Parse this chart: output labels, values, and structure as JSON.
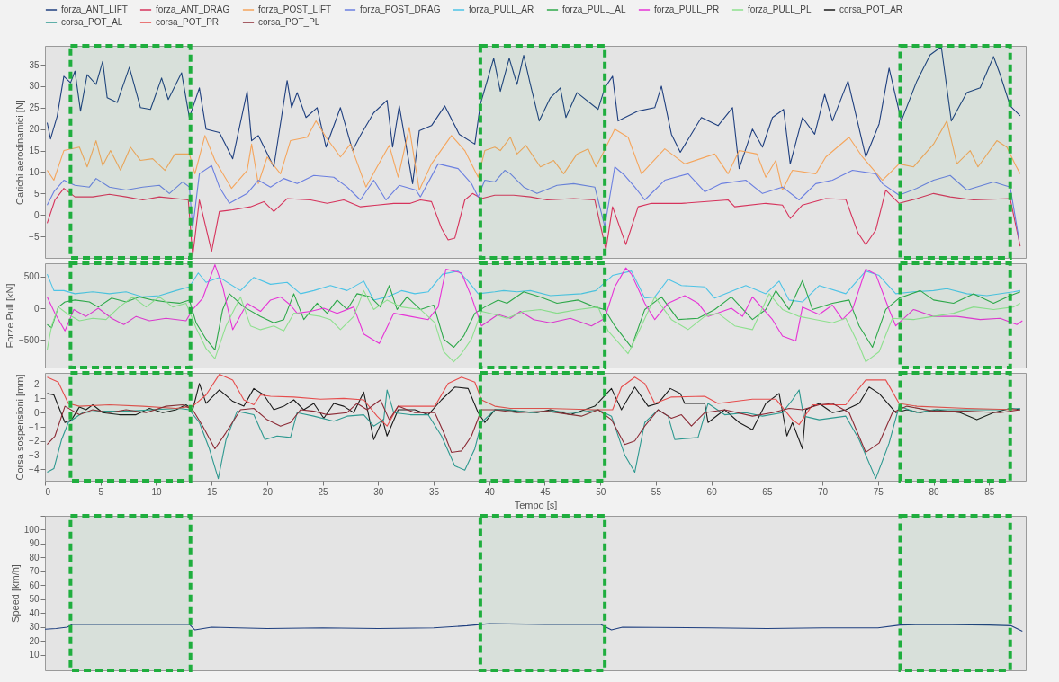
{
  "chart_data": [
    {
      "type": "line",
      "ylabel": "Carichi aerodinamici [N]",
      "xlim": [
        0,
        88.3
      ],
      "xticks": [
        0,
        5,
        10,
        15,
        20,
        25,
        30,
        35,
        40,
        45,
        50,
        55,
        60,
        65,
        70,
        75,
        80,
        85
      ],
      "ylim": [
        -10,
        39.4
      ],
      "yticks": [
        -5,
        0,
        5,
        10,
        15,
        20,
        25,
        30,
        35
      ],
      "tick_labels": "y",
      "legend": "top",
      "bands": [
        {
          "axis": "x",
          "from": 2.3,
          "to": 13.1,
          "color": "#1fae3e"
        },
        {
          "axis": "x",
          "from": 39.2,
          "to": 50.4,
          "color": "#1fae3e"
        },
        {
          "axis": "x",
          "from": 77.0,
          "to": 86.9,
          "color": "#1fae3e"
        }
      ],
      "series": [
        {
          "name": "forza_ANT_LIFT",
          "color": "#1f3f7f",
          "x": [
            0.2,
            0.5,
            1.1,
            1.7,
            2.3,
            2.7,
            3.2,
            3.8,
            4.6,
            5.2,
            5.6,
            6.5,
            7.6,
            8.6,
            9.5,
            10.5,
            11.1,
            12.3,
            13.0,
            13.5,
            13.9,
            14.5,
            15.7,
            16.9,
            18.2,
            18.6,
            19.2,
            20.6,
            21.8,
            22.2,
            22.7,
            23.5,
            24.5,
            25.3,
            26.6,
            27.7,
            28.4,
            29.6,
            30.8,
            31.3,
            31.9,
            33.1,
            33.7,
            34.8,
            36.0,
            37.3,
            38.7,
            39.2,
            40.4,
            41.0,
            41.8,
            42.5,
            43.1,
            43.7,
            44.5,
            45.5,
            46.4,
            46.9,
            47.9,
            49.8,
            50.4,
            51.1,
            51.6,
            53.4,
            54.9,
            55.5,
            56.4,
            57.2,
            59.1,
            60.6,
            61.9,
            62.5,
            63.7,
            64.6,
            65.5,
            66.5,
            67.1,
            68.2,
            69.3,
            70.2,
            70.9,
            72.3,
            73.9,
            75.1,
            76.0,
            77.1,
            78.5,
            79.7,
            80.7,
            81.6,
            83.0,
            84.2,
            85.4,
            86.0,
            86.9,
            87.8
          ],
          "values": [
            21.5,
            17.7,
            23,
            32.3,
            30.8,
            33.5,
            24.2,
            32.7,
            30.4,
            35.8,
            27.3,
            26.2,
            34.4,
            25,
            24.6,
            31.9,
            26.9,
            33.1,
            22.7,
            26.5,
            29.6,
            20,
            19.2,
            13.1,
            28.8,
            17.3,
            18.5,
            11.2,
            31.3,
            25,
            28.5,
            22.7,
            25,
            15.8,
            25,
            15,
            18.5,
            23.8,
            26.7,
            15.8,
            25.4,
            7.3,
            19.6,
            20.8,
            25.4,
            18.8,
            16.5,
            25.8,
            36.5,
            28.8,
            36.5,
            30.4,
            37.2,
            30.4,
            21.9,
            27.3,
            29.6,
            22.7,
            28.5,
            24.6,
            29.6,
            32.3,
            21.9,
            24.2,
            25,
            30,
            18.8,
            14.6,
            22.7,
            20.8,
            25,
            10.8,
            20,
            15.8,
            22.7,
            24.6,
            11.9,
            22.7,
            18.8,
            28.1,
            21.9,
            31.2,
            13.5,
            21.2,
            34.2,
            21.9,
            31.2,
            37.3,
            39.2,
            21.9,
            28.5,
            29.6,
            36.9,
            32.7,
            25.4,
            23.1
          ]
        },
        {
          "name": "forza_ANT_DRAG",
          "color": "#d6335c",
          "x": [
            0.2,
            0.9,
            1.7,
            2.7,
            4.3,
            5.8,
            7.3,
            8.8,
            10.3,
            11.8,
            12.9,
            13.3,
            13.9,
            15.0,
            15.7,
            16.9,
            18.5,
            19.7,
            20.6,
            21.8,
            23.9,
            25.4,
            26.9,
            28.4,
            29.9,
            31.4,
            32.9,
            33.8,
            34.8,
            35.7,
            36.3,
            36.9,
            37.8,
            38.5,
            39.3,
            40.5,
            42.2,
            43.7,
            45.2,
            47.6,
            49.5,
            50.5,
            51.1,
            52.3,
            53.4,
            54.6,
            57.3,
            61.5,
            62.1,
            64.9,
            66.4,
            67.1,
            68.2,
            70.3,
            72.1,
            73.2,
            73.9,
            74.8,
            75.7,
            76.9,
            78.5,
            80.0,
            81.5,
            83.6,
            86.9,
            87.8
          ],
          "values": [
            -1.9,
            3.5,
            6.2,
            4.2,
            4.2,
            4.8,
            4.2,
            3.5,
            4.2,
            3.8,
            3.5,
            -9.6,
            3.5,
            -8.5,
            0.8,
            1.2,
            1.9,
            3.1,
            0.8,
            3.8,
            3.5,
            2.7,
            3.5,
            1.9,
            2.3,
            2.7,
            2.7,
            3.5,
            3.1,
            -3.1,
            -5.8,
            -5.4,
            3.5,
            5,
            3.8,
            4.6,
            4.6,
            4.2,
            3.5,
            3.8,
            3.5,
            -8.1,
            1.9,
            -6.9,
            1.9,
            2.7,
            2.7,
            3.5,
            1.9,
            2.7,
            2.3,
            -0.8,
            2.3,
            3.8,
            3.6,
            -4.2,
            -6.9,
            -3.5,
            5.8,
            2.7,
            3.8,
            5,
            4.2,
            3.5,
            3.8,
            -7.3
          ]
        },
        {
          "name": "forza_POST_LIFT",
          "color": "#f5a55c",
          "x": [
            0.2,
            0.8,
            1.7,
            3.1,
            3.8,
            4.6,
            5.2,
            5.9,
            6.8,
            7.7,
            8.6,
            9.7,
            10.8,
            11.7,
            13.0,
            13.5,
            14.4,
            15.3,
            16.8,
            18.2,
            18.6,
            19.2,
            20.0,
            21.2,
            22.1,
            23.6,
            24.4,
            25.3,
            26.6,
            27.5,
            28.9,
            29.9,
            31.0,
            31.8,
            32.8,
            33.7,
            34.8,
            36.6,
            37.8,
            39.0,
            39.6,
            40.5,
            41.0,
            41.9,
            42.5,
            43.3,
            44.6,
            45.8,
            46.7,
            47.9,
            48.9,
            49.6,
            50.2,
            51.3,
            52.5,
            53.7,
            55.8,
            57.6,
            60.3,
            61.5,
            62.5,
            64.1,
            64.9,
            65.8,
            66.4,
            67.3,
            69.4,
            70.3,
            72.4,
            73.6,
            75.4,
            76.9,
            78.2,
            80.0,
            81.2,
            82.1,
            83.3,
            84.0,
            85.7,
            86.6,
            87.4,
            87.8
          ],
          "values": [
            10.4,
            8.1,
            15,
            15.8,
            11.2,
            17.3,
            11.5,
            15,
            10.4,
            15.8,
            12.7,
            13.1,
            10.4,
            14.2,
            14.2,
            9.6,
            18.5,
            12.7,
            6.2,
            10.4,
            16.5,
            7.3,
            13.5,
            9.6,
            17.3,
            18.1,
            21.9,
            18.1,
            13.5,
            16.5,
            6.5,
            11.2,
            16.2,
            8.8,
            20.4,
            5.8,
            11.9,
            18.5,
            15,
            8.8,
            15,
            15.8,
            15,
            18.1,
            14.2,
            16.2,
            11.2,
            12.7,
            9.6,
            14.2,
            15.4,
            11.2,
            14.2,
            20,
            18.1,
            9.6,
            15.4,
            11.9,
            14.2,
            9.6,
            15,
            14.2,
            8.8,
            12.7,
            5.8,
            10.4,
            9.6,
            13.5,
            18.1,
            13.5,
            8.1,
            11.9,
            11.2,
            16.5,
            21.9,
            11.9,
            15,
            11.2,
            17.3,
            15.8,
            11.5,
            9.6
          ]
        },
        {
          "name": "forza_POST_DRAG",
          "color": "#6b7fe0",
          "x": [
            0.2,
            0.8,
            1.7,
            2.7,
            4.0,
            4.6,
            5.8,
            7.3,
            8.8,
            10.3,
            11.2,
            12.4,
            13.0,
            13.3,
            13.9,
            15.0,
            15.7,
            16.6,
            18.2,
            19.2,
            20.3,
            21.5,
            22.7,
            24.2,
            26.0,
            27.2,
            28.4,
            29.6,
            30.7,
            31.9,
            33.4,
            33.8,
            35.4,
            37.2,
            38.4,
            39.0,
            39.6,
            40.5,
            41.4,
            41.9,
            43.1,
            44.3,
            46.1,
            47.6,
            49.5,
            50.4,
            51.3,
            52.2,
            53.1,
            54.0,
            55.8,
            57.9,
            59.4,
            60.9,
            63.1,
            64.6,
            66.4,
            67.9,
            69.4,
            70.9,
            72.7,
            74.8,
            75.4,
            76.9,
            78.5,
            80.0,
            81.5,
            83.0,
            85.4,
            86.9,
            87.7
          ],
          "values": [
            2.3,
            5.4,
            8.1,
            6.9,
            6.5,
            8.5,
            6.5,
            5.8,
            6.5,
            6.9,
            5,
            7.7,
            6.5,
            -3.1,
            9.6,
            11.5,
            6.5,
            2.7,
            5,
            8.1,
            6.5,
            8.5,
            7.3,
            9.2,
            8.8,
            6.5,
            3.5,
            8.1,
            3.5,
            6.9,
            5.8,
            4.2,
            11.9,
            10.8,
            7.3,
            4.2,
            8.1,
            7.7,
            10.4,
            9.6,
            6.5,
            5,
            6.9,
            7.3,
            6.5,
            -2.7,
            11.2,
            9.2,
            6.5,
            3.5,
            8.1,
            9.6,
            5.4,
            7.3,
            8.1,
            5,
            6.5,
            3.5,
            7.3,
            8.1,
            10.4,
            9.6,
            7.3,
            4.6,
            6.2,
            8.1,
            9.2,
            5.8,
            7.7,
            6.5,
            -5.8
          ]
        }
      ]
    },
    {
      "type": "line",
      "ylabel": "Forze Pull [kN]",
      "xlim": [
        0,
        88.3
      ],
      "xticks": [
        0,
        5,
        10,
        15,
        20,
        25,
        30,
        35,
        40,
        45,
        50,
        55,
        60,
        65,
        70,
        75,
        80,
        85
      ],
      "ylim": [
        -940,
        713
      ],
      "yticks": [
        -500,
        0,
        500
      ],
      "tick_labels": "y",
      "legend": "top",
      "bands": [
        {
          "axis": "x",
          "from": 2.3,
          "to": 13.1,
          "color": "#1fae3e"
        },
        {
          "axis": "x",
          "from": 39.2,
          "to": 50.4,
          "color": "#1fae3e"
        },
        {
          "axis": "x",
          "from": 77.0,
          "to": 86.9,
          "color": "#1fae3e"
        }
      ],
      "series": [
        {
          "name": "forza_PULL_AR",
          "color": "#4dc3e6",
          "x": [
            0.2,
            0.8,
            1.7,
            2.7,
            4.3,
            5.8,
            7.3,
            8.8,
            10.3,
            11.8,
            13.0,
            13.8,
            14.5,
            15.7,
            17.6,
            18.8,
            20.3,
            21.8,
            23.0,
            24.2,
            25.7,
            27.2,
            28.7,
            29.6,
            30.8,
            32.1,
            33.3,
            34.5,
            35.8,
            37.2,
            38.1,
            39.0,
            40.5,
            41.3,
            42.5,
            43.7,
            45.5,
            48.3,
            49.6,
            51.1,
            52.8,
            54.0,
            54.9,
            56.1,
            57.3,
            59.4,
            60.3,
            63.1,
            64.9,
            66.1,
            67.0,
            68.2,
            69.7,
            72.1,
            73.9,
            75.1,
            76.6,
            78.2,
            80.0,
            81.2,
            83.0,
            84.8,
            87.2,
            87.8
          ],
          "values": [
            540,
            280,
            280,
            230,
            260,
            230,
            260,
            180,
            200,
            280,
            340,
            560,
            410,
            490,
            280,
            490,
            380,
            410,
            230,
            280,
            360,
            280,
            430,
            130,
            180,
            280,
            230,
            260,
            540,
            590,
            430,
            230,
            260,
            280,
            260,
            280,
            200,
            230,
            280,
            520,
            590,
            160,
            180,
            460,
            360,
            340,
            160,
            360,
            230,
            430,
            130,
            100,
            360,
            230,
            590,
            520,
            230,
            260,
            280,
            310,
            230,
            200,
            260,
            280
          ]
        },
        {
          "name": "forza_PULL_AL",
          "color": "#2ea84a",
          "x": [
            0.2,
            0.6,
            1.2,
            1.8,
            2.7,
            4.0,
            4.8,
            6.0,
            7.3,
            8.5,
            9.7,
            10.9,
            12.1,
            13.0,
            13.6,
            14.5,
            15.3,
            16.0,
            16.6,
            17.9,
            19.4,
            20.6,
            21.5,
            22.4,
            23.3,
            24.5,
            25.4,
            26.3,
            27.2,
            28.1,
            29.3,
            30.2,
            31.0,
            31.7,
            32.6,
            33.8,
            35.0,
            35.9,
            36.8,
            37.7,
            38.7,
            39.6,
            40.8,
            41.6,
            43.1,
            44.6,
            46.1,
            48.0,
            49.5,
            50.4,
            51.3,
            52.8,
            54.0,
            55.5,
            57.0,
            58.8,
            60.3,
            61.8,
            63.7,
            64.9,
            65.8,
            67.0,
            68.2,
            69.1,
            70.9,
            72.4,
            73.3,
            74.5,
            75.7,
            76.9,
            78.8,
            80.0,
            81.8,
            83.6,
            85.4,
            86.9,
            87.8
          ],
          "values": [
            -260,
            -310,
            20,
            100,
            130,
            100,
            20,
            160,
            100,
            180,
            130,
            100,
            80,
            130,
            -230,
            -490,
            -660,
            -20,
            230,
            20,
            -130,
            -230,
            -180,
            230,
            -180,
            80,
            -80,
            130,
            -20,
            230,
            180,
            20,
            360,
            -20,
            180,
            -20,
            50,
            -490,
            -620,
            -440,
            -80,
            20,
            130,
            80,
            260,
            180,
            80,
            130,
            20,
            -20,
            -280,
            -620,
            -20,
            180,
            -180,
            -160,
            -20,
            180,
            -180,
            -20,
            280,
            -20,
            440,
            -20,
            80,
            130,
            -280,
            -620,
            -20,
            160,
            280,
            130,
            80,
            230,
            80,
            200,
            260
          ]
        },
        {
          "name": "forza_PULL_PR",
          "color": "#e633d6",
          "x": [
            0.2,
            0.9,
            1.8,
            2.6,
            3.7,
            4.8,
            6.0,
            7.1,
            8.2,
            9.4,
            10.9,
            12.7,
            13.3,
            14.2,
            15.3,
            16.0,
            16.9,
            18.2,
            19.4,
            20.3,
            21.2,
            22.1,
            22.7,
            23.9,
            25.1,
            26.3,
            27.8,
            28.7,
            30.1,
            31.4,
            32.9,
            34.5,
            35.4,
            36.1,
            37.5,
            38.4,
            39.3,
            40.8,
            41.9,
            42.8,
            44.0,
            45.5,
            47.3,
            49.2,
            50.4,
            51.3,
            52.3,
            52.8,
            54.0,
            54.9,
            56.1,
            57.6,
            58.8,
            59.7,
            61.8,
            62.8,
            63.7,
            65.5,
            66.4,
            67.6,
            68.2,
            69.7,
            70.9,
            71.8,
            72.7,
            73.9,
            74.8,
            76.0,
            76.6,
            78.2,
            80.0,
            82.1,
            84.2,
            86.0,
            87.5,
            88.0
          ],
          "values": [
            180,
            -80,
            -360,
            -20,
            -130,
            0,
            -160,
            -260,
            -130,
            -200,
            -160,
            -200,
            -20,
            160,
            690,
            340,
            -340,
            80,
            -50,
            130,
            180,
            50,
            -80,
            -50,
            0,
            -80,
            20,
            -410,
            -560,
            -80,
            -130,
            -180,
            20,
            620,
            560,
            180,
            -280,
            -100,
            -160,
            -50,
            -180,
            -230,
            -160,
            -280,
            -160,
            340,
            640,
            540,
            80,
            -180,
            80,
            200,
            80,
            -130,
            0,
            -130,
            180,
            -180,
            -440,
            -520,
            20,
            -100,
            50,
            -180,
            -20,
            620,
            540,
            -20,
            -280,
            -20,
            -130,
            -130,
            -180,
            -160,
            -260,
            -200
          ]
        },
        {
          "name": "forza_PULL_PL",
          "color": "#8ee08e",
          "x": [
            0.2,
            0.6,
            1.2,
            2.1,
            3.1,
            4.3,
            5.5,
            6.7,
            7.9,
            9.1,
            10.3,
            11.5,
            12.7,
            13.6,
            14.5,
            15.3,
            16.3,
            17.6,
            18.5,
            19.4,
            20.6,
            21.5,
            22.4,
            23.6,
            24.8,
            25.7,
            26.6,
            27.8,
            28.7,
            29.6,
            30.8,
            32.1,
            33.8,
            35.1,
            35.9,
            36.8,
            37.5,
            38.4,
            39.3,
            40.5,
            41.6,
            43.1,
            44.6,
            46.1,
            48.0,
            49.8,
            50.7,
            51.6,
            52.5,
            53.7,
            54.9,
            56.4,
            57.9,
            59.4,
            60.6,
            62.1,
            63.7,
            65.2,
            66.4,
            67.9,
            69.4,
            70.9,
            72.1,
            73.3,
            73.9,
            75.1,
            76.3,
            78.2,
            80.0,
            81.8,
            83.6,
            85.4,
            87.2,
            87.8
          ],
          "values": [
            -660,
            -280,
            20,
            -100,
            -200,
            -160,
            -180,
            20,
            180,
            20,
            180,
            20,
            80,
            -310,
            -640,
            -800,
            -280,
            180,
            -280,
            -340,
            -280,
            -360,
            -80,
            -100,
            -130,
            -180,
            -340,
            -130,
            280,
            -20,
            130,
            20,
            -20,
            -230,
            -690,
            -850,
            -720,
            -490,
            -50,
            -100,
            -160,
            -50,
            -20,
            -80,
            -20,
            20,
            -360,
            -540,
            -720,
            -280,
            180,
            -180,
            -340,
            -130,
            -80,
            -280,
            -340,
            230,
            -20,
            -130,
            -180,
            -230,
            -160,
            -590,
            -850,
            -690,
            -160,
            -180,
            -130,
            -80,
            20,
            -20,
            20,
            80
          ]
        }
      ]
    },
    {
      "type": "line",
      "xlabel": "Tempo [s]",
      "ylabel": "Corsa sospensioni [mm]",
      "xlim": [
        0,
        88.3
      ],
      "xticks": [
        0,
        5,
        10,
        15,
        20,
        25,
        30,
        35,
        40,
        45,
        50,
        55,
        60,
        65,
        70,
        75,
        80,
        85
      ],
      "ylim": [
        -4.8,
        2.8
      ],
      "yticks": [
        -4,
        -3,
        -2,
        -1,
        0,
        1,
        2
      ],
      "legend": "top",
      "bands": [
        {
          "axis": "x",
          "from": 2.3,
          "to": 13.1,
          "color": "#1fae3e"
        },
        {
          "axis": "x",
          "from": 39.2,
          "to": 50.4,
          "color": "#1fae3e"
        },
        {
          "axis": "x",
          "from": 77.0,
          "to": 86.9,
          "color": "#1fae3e"
        }
      ],
      "series": [
        {
          "name": "corsa_POT_AR",
          "color": "#1a1a1a",
          "x": [
            0.2,
            0.8,
            1.8,
            2.4,
            3.1,
            3.7,
            4.3,
            5.2,
            6.7,
            8.2,
            9.4,
            10.6,
            11.8,
            12.7,
            13.3,
            13.9,
            14.5,
            15.7,
            16.9,
            17.9,
            18.8,
            19.7,
            20.6,
            21.5,
            22.4,
            23.3,
            24.2,
            25.1,
            26.0,
            26.9,
            27.8,
            28.7,
            29.6,
            30.4,
            30.8,
            31.8,
            33.3,
            34.5,
            35.7,
            36.9,
            38.1,
            39.0,
            39.6,
            40.5,
            41.3,
            42.5,
            44.3,
            45.5,
            47.3,
            49.5,
            51.0,
            51.9,
            53.1,
            54.3,
            55.2,
            56.3,
            57.2,
            57.6,
            59.4,
            59.7,
            61.2,
            62.5,
            63.7,
            64.9,
            66.1,
            66.8,
            67.3,
            68.2,
            68.5,
            69.7,
            70.9,
            72.1,
            73.3,
            74.2,
            75.1,
            76.6,
            77.6,
            78.8,
            80.3,
            82.4,
            83.9,
            85.4,
            86.9,
            87.8
          ],
          "values": [
            1.35,
            1.25,
            -0.7,
            -0.5,
            0.4,
            0.2,
            0.55,
            0,
            -0.15,
            -0.15,
            0.3,
            0,
            0.2,
            0.55,
            0.2,
            2.05,
            0.65,
            1.6,
            0.8,
            0.45,
            1.7,
            1.25,
            0.2,
            0.45,
            0.9,
            0.2,
            0.65,
            -0.4,
            0.65,
            0.45,
            0,
            1.45,
            -1.9,
            -0.5,
            -1.65,
            0.2,
            0.2,
            -0.15,
            0.9,
            1.8,
            1.7,
            0,
            -0.7,
            0.2,
            0.2,
            0.1,
            0,
            0.2,
            -0.15,
            0.45,
            1.7,
            0.2,
            1.8,
            0.45,
            0.65,
            1.7,
            1.35,
            0.65,
            0.65,
            -0.7,
            0.2,
            -0.7,
            -1.2,
            0.65,
            1.35,
            -1.65,
            -0.7,
            -2.55,
            0.2,
            0.65,
            0,
            0.2,
            0.65,
            1.8,
            1.35,
            0,
            0.2,
            0,
            0.2,
            0,
            -0.5,
            0,
            0.3,
            0.2
          ]
        },
        {
          "name": "corsa_POT_AL",
          "color": "#2e9990",
          "x": [
            0.2,
            0.8,
            1.5,
            2.1,
            3.4,
            4.9,
            7.3,
            9.7,
            12.1,
            13.0,
            13.9,
            14.8,
            15.6,
            16.3,
            17.3,
            18.8,
            19.8,
            20.9,
            22.1,
            22.7,
            24.2,
            26.0,
            27.2,
            28.7,
            29.6,
            30.5,
            30.8,
            31.4,
            32.9,
            34.5,
            35.7,
            36.9,
            37.8,
            38.7,
            39.3,
            40.5,
            41.9,
            43.7,
            45.5,
            47.9,
            49.8,
            51.0,
            52.2,
            53.1,
            54.0,
            55.2,
            56.1,
            56.7,
            58.8,
            59.7,
            61.2,
            63.1,
            64.6,
            66.4,
            67.3,
            67.9,
            68.3,
            69.7,
            72.1,
            73.3,
            74.8,
            76.0,
            76.9,
            78.5,
            80.0,
            83.0,
            86.0,
            87.8
          ],
          "values": [
            -4.2,
            -3.95,
            -1.9,
            -0.7,
            0,
            0.1,
            0.1,
            0.2,
            0.3,
            0.2,
            -0.7,
            -2.55,
            -4.65,
            -1.9,
            0.1,
            -0.15,
            -1.9,
            -1.65,
            -1.75,
            0,
            -0.25,
            -0.6,
            -0.25,
            -0.15,
            -0.95,
            -0.5,
            1.6,
            0,
            -0.15,
            -0.15,
            -1.65,
            -3.75,
            -4.05,
            -2.55,
            -0.7,
            0.2,
            0.2,
            0,
            0.1,
            0,
            0.2,
            -0.25,
            -3,
            -4.2,
            -0.7,
            0.2,
            -0.25,
            -1.9,
            -1.75,
            0.65,
            -0.15,
            0,
            -0.25,
            0,
            0.9,
            1.6,
            -0.25,
            -0.5,
            -0.25,
            -1.9,
            -4.65,
            -2.15,
            0.45,
            0,
            0.2,
            0.2,
            0.2,
            0.3
          ]
        },
        {
          "name": "corsa_POT_PR",
          "color": "#e64d4d",
          "x": [
            0.2,
            1.2,
            2.1,
            3.1,
            5.8,
            8.8,
            11.8,
            13.3,
            14.5,
            15.7,
            16.9,
            17.9,
            18.8,
            19.4,
            20.3,
            22.4,
            24.8,
            26.9,
            28.7,
            29.9,
            30.8,
            31.8,
            33.3,
            35.1,
            36.3,
            37.5,
            38.7,
            39.3,
            40.5,
            41.9,
            45.2,
            49.5,
            51.1,
            51.9,
            53.1,
            54.0,
            54.9,
            56.4,
            59.4,
            60.6,
            63.7,
            65.8,
            67.3,
            67.9,
            69.1,
            72.1,
            73.9,
            75.7,
            76.9,
            78.5,
            83.0,
            87.5
          ],
          "values": [
            2.5,
            2.15,
            0.65,
            0.45,
            0.55,
            0.45,
            0.3,
            0.45,
            1.25,
            2.7,
            2.3,
            0.9,
            0.55,
            1.25,
            1.15,
            1.1,
            0.95,
            1.0,
            0.9,
            -0.25,
            -0.95,
            0.45,
            0.45,
            0.45,
            2.05,
            2.5,
            2.15,
            0.9,
            0.45,
            0.3,
            0.3,
            0.2,
            0.2,
            1.8,
            2.5,
            2.05,
            0.65,
            1.1,
            1.15,
            0.65,
            0.95,
            0.95,
            -0.5,
            -0.85,
            0.55,
            0.55,
            2.3,
            2.3,
            0.65,
            0.45,
            0.3,
            0.2
          ]
        },
        {
          "name": "corsa_POT_PL",
          "color": "#8b2a35",
          "x": [
            0.2,
            0.9,
            1.8,
            3.1,
            4.3,
            5.8,
            7.3,
            9.1,
            10.9,
            12.4,
            13.3,
            14.2,
            15.3,
            16.3,
            17.6,
            18.8,
            20.0,
            21.2,
            22.1,
            23.0,
            24.2,
            25.4,
            27.2,
            28.1,
            29.0,
            30.2,
            31.0,
            31.8,
            33.3,
            35.1,
            35.9,
            36.6,
            37.5,
            38.4,
            39.3,
            40.5,
            42.5,
            45.2,
            48.3,
            49.8,
            51.0,
            52.2,
            53.1,
            54.0,
            55.2,
            56.4,
            57.3,
            58.2,
            59.4,
            61.2,
            63.7,
            65.5,
            67.0,
            68.2,
            69.7,
            70.9,
            72.4,
            73.9,
            75.1,
            76.3,
            77.6,
            80.0,
            83.0,
            86.0,
            87.8
          ],
          "values": [
            -2.25,
            -1.65,
            0.45,
            -0.15,
            0.2,
            0,
            0.2,
            0,
            0.45,
            0.55,
            0.2,
            -0.95,
            -2.55,
            -1.4,
            0.2,
            0.3,
            -0.5,
            -0.95,
            -0.7,
            0.2,
            0.1,
            -0.15,
            0,
            0.65,
            0.2,
            0.9,
            -0.5,
            0.45,
            0,
            0,
            -1.4,
            -2.8,
            -2.7,
            -1.65,
            0.2,
            0.2,
            0,
            0.1,
            -0.25,
            0.2,
            -0.5,
            -2.25,
            -2.0,
            -0.95,
            0.2,
            -0.4,
            -0.15,
            -0.95,
            0,
            0.2,
            -0.25,
            0,
            0.3,
            0.2,
            0.55,
            0.65,
            0,
            -2.8,
            -2.15,
            0,
            0.45,
            0.1,
            0.1,
            0,
            0.2
          ]
        }
      ]
    },
    {
      "type": "line",
      "ylabel": "Speed [km/h]",
      "xlim": [
        0,
        88.3
      ],
      "xticks": [
        0,
        5,
        10,
        15,
        20,
        25,
        30,
        35,
        40,
        45,
        50,
        55,
        60,
        65,
        70,
        75,
        80,
        85
      ],
      "ylim": [
        -1,
        110
      ],
      "yticks": [
        {
          "value": 0,
          "label": null
        },
        10,
        20,
        30,
        40,
        50,
        60,
        70,
        80,
        90,
        100,
        {
          "value": 110,
          "label": null
        }
      ],
      "tick_labels": "y",
      "bands": [
        {
          "axis": "x",
          "from": 2.3,
          "to": 13.1,
          "color": "#1fae3e"
        },
        {
          "axis": "x",
          "from": 39.2,
          "to": 50.4,
          "color": "#1fae3e"
        },
        {
          "axis": "x",
          "from": 77.0,
          "to": 86.9,
          "color": "#1fae3e"
        }
      ],
      "series": [
        {
          "color": "#1f3f7f",
          "x": [
            0,
            1,
            2,
            2.5,
            5,
            8,
            11,
            13,
            13.5,
            15,
            20,
            25,
            30,
            35,
            38,
            40,
            45,
            50,
            51,
            52,
            60,
            65,
            70,
            75,
            77,
            80,
            85,
            87,
            88
          ],
          "values": [
            28.5,
            29,
            30,
            32,
            32,
            32,
            32,
            32,
            28,
            30,
            29,
            29.5,
            29,
            29.5,
            31,
            32.5,
            32,
            32,
            28,
            30,
            29.5,
            29,
            29.5,
            29.5,
            31.5,
            32,
            31.5,
            31,
            27
          ]
        }
      ]
    }
  ]
}
